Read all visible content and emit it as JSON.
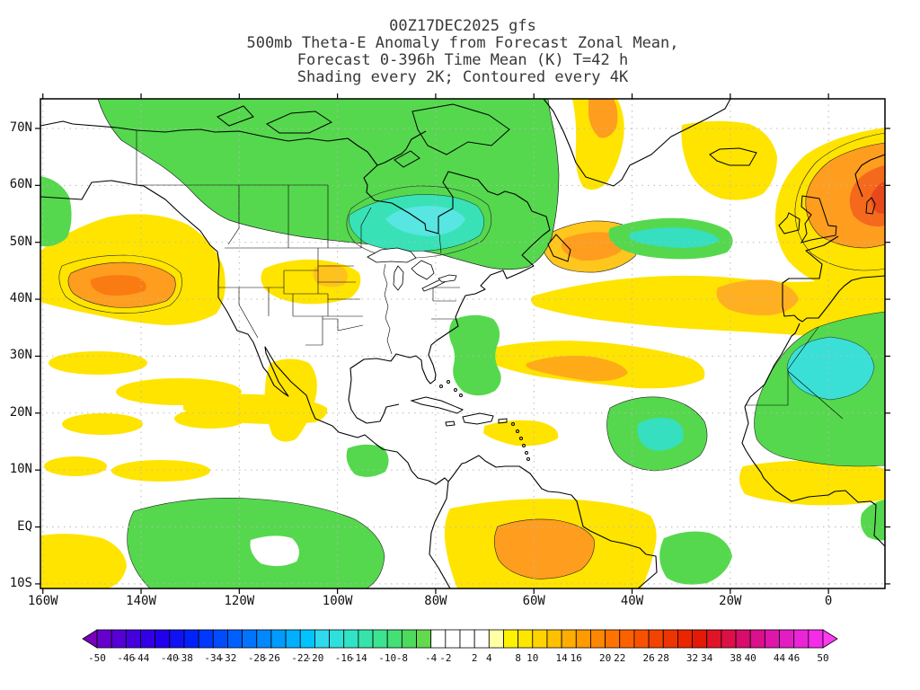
{
  "title": {
    "line1": "00Z17DEC2025 gfs",
    "line2": "500mb Theta-E Anomaly from Forecast Zonal Mean,",
    "line3": "Forecast 0-396h Time Mean (K) T=42 h",
    "line4": "Shading every 2K; Contoured every 4K"
  },
  "map": {
    "lat_ticks": [
      {
        "label": "70N",
        "value": 70
      },
      {
        "label": "60N",
        "value": 60
      },
      {
        "label": "50N",
        "value": 50
      },
      {
        "label": "40N",
        "value": 40
      },
      {
        "label": "30N",
        "value": 30
      },
      {
        "label": "20N",
        "value": 20
      },
      {
        "label": "10N",
        "value": 10
      },
      {
        "label": "EQ",
        "value": 0
      },
      {
        "label": "10S",
        "value": -10
      }
    ],
    "lon_ticks": [
      {
        "label": "160W",
        "value": -160
      },
      {
        "label": "140W",
        "value": -140
      },
      {
        "label": "120W",
        "value": -120
      },
      {
        "label": "100W",
        "value": -100
      },
      {
        "label": "80W",
        "value": -80
      },
      {
        "label": "60W",
        "value": -60
      },
      {
        "label": "40W",
        "value": -40
      },
      {
        "label": "20W",
        "value": -20
      },
      {
        "label": "0",
        "value": 0
      }
    ]
  },
  "colorbar": {
    "units": "K",
    "min": -50,
    "max": 50,
    "interval": 2,
    "tick_labels": [
      -50,
      -46,
      -44,
      -40,
      -38,
      -34,
      -32,
      -28,
      -26,
      -22,
      -20,
      -16,
      -14,
      -10,
      -8,
      -4,
      -2,
      2,
      4,
      8,
      10,
      14,
      16,
      20,
      22,
      26,
      28,
      32,
      34,
      38,
      40,
      44,
      46,
      50
    ],
    "colors": [
      "#7700bb",
      "#6600cc",
      "#5500d5",
      "#4400dd",
      "#3300e6",
      "#2200ee",
      "#1111f4",
      "#0022fa",
      "#0038ff",
      "#004cff",
      "#0060ff",
      "#0074ff",
      "#0088ff",
      "#009cff",
      "#00b0ff",
      "#00c4ff",
      "#2fd9ee",
      "#2ee0dc",
      "#31e3c4",
      "#36e4ab",
      "#3ce390",
      "#44e076",
      "#4eda5c",
      "#63d94e",
      "#ffffff",
      "#ffffff",
      "#ffffff",
      "#ffffff",
      "#ffffa6",
      "#fff200",
      "#ffe600",
      "#ffd300",
      "#ffc000",
      "#ffad00",
      "#ff9a00",
      "#ff8700",
      "#ff7400",
      "#fc6100",
      "#f85200",
      "#f34300",
      "#ee3400",
      "#e92600",
      "#e41a06",
      "#e01426",
      "#dc1048",
      "#d80c6a",
      "#da108c",
      "#de16aa",
      "#e41cc4",
      "#ec24d8",
      "#f42ce8",
      "#ff3af0"
    ]
  }
}
